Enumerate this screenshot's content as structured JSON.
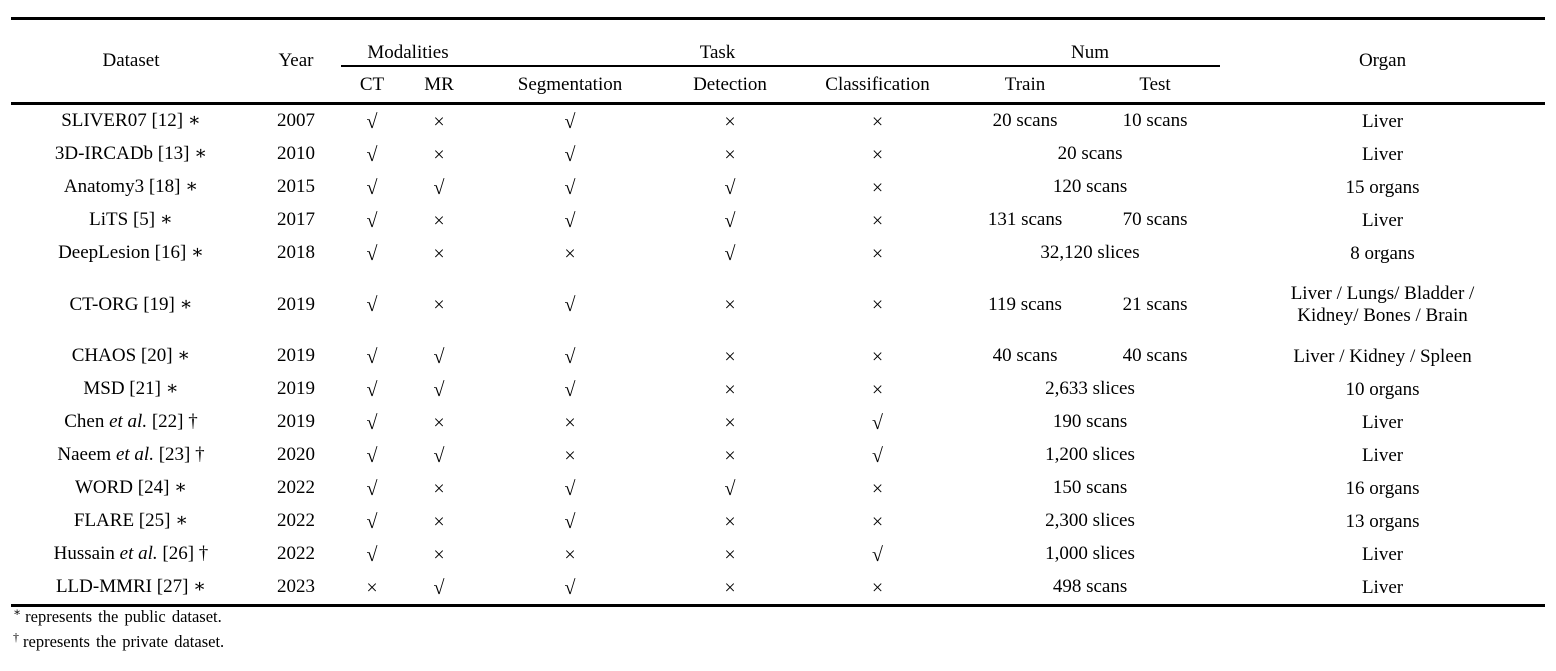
{
  "table": {
    "header": {
      "dataset": "Dataset",
      "year": "Year",
      "modalities": "Modalities",
      "task": "Task",
      "num": "Num",
      "organ": "Organ",
      "ct": "CT",
      "mr": "MR",
      "segmentation": "Segmentation",
      "detection": "Detection",
      "classification": "Classification",
      "train": "Train",
      "test": "Test"
    },
    "symbols": {
      "yes": "√",
      "no": "×",
      "public_marker": "∗",
      "private_marker": "†"
    },
    "rows": [
      {
        "name_pre": "SLIVER07 [12] ∗",
        "name_it": "",
        "name_post": "",
        "year": "2007",
        "ct": "√",
        "mr": "×",
        "segmentation": "√",
        "detection": "×",
        "classification": "×",
        "train": "20 scans",
        "test": "10 scans",
        "organ": "Liver",
        "organ2": ""
      },
      {
        "name_pre": "3D-IRCADb [13] ∗",
        "name_it": "",
        "name_post": "",
        "year": "2010",
        "ct": "√",
        "mr": "×",
        "segmentation": "√",
        "detection": "×",
        "classification": "×",
        "train": "20 scans",
        "test": "",
        "organ": "Liver",
        "organ2": ""
      },
      {
        "name_pre": "Anatomy3 [18] ∗",
        "name_it": "",
        "name_post": "",
        "year": "2015",
        "ct": "√",
        "mr": "√",
        "segmentation": "√",
        "detection": "√",
        "classification": "×",
        "train": "120 scans",
        "test": "",
        "organ": "15 organs",
        "organ2": ""
      },
      {
        "name_pre": "LiTS [5] ∗",
        "name_it": "",
        "name_post": "",
        "year": "2017",
        "ct": "√",
        "mr": "×",
        "segmentation": "√",
        "detection": "√",
        "classification": "×",
        "train": "131 scans",
        "test": "70 scans",
        "organ": "Liver",
        "organ2": ""
      },
      {
        "name_pre": "DeepLesion [16] ∗",
        "name_it": "",
        "name_post": "",
        "year": "2018",
        "ct": "√",
        "mr": "×",
        "segmentation": "×",
        "detection": "√",
        "classification": "×",
        "train": "32,120 slices",
        "test": "",
        "organ": "8 organs",
        "organ2": ""
      },
      {
        "name_pre": "CT-ORG [19] ∗",
        "name_it": "",
        "name_post": "",
        "year": "2019",
        "ct": "√",
        "mr": "×",
        "segmentation": "√",
        "detection": "×",
        "classification": "×",
        "train": "119 scans",
        "test": "21 scans",
        "organ": "Liver / Lungs/ Bladder /",
        "organ2": "Kidney/ Bones / Brain"
      },
      {
        "name_pre": "CHAOS [20] ∗",
        "name_it": "",
        "name_post": "",
        "year": "2019",
        "ct": "√",
        "mr": "√",
        "segmentation": "√",
        "detection": "×",
        "classification": "×",
        "train": "40 scans",
        "test": "40 scans",
        "organ": "Liver / Kidney / Spleen",
        "organ2": ""
      },
      {
        "name_pre": "MSD [21] ∗",
        "name_it": "",
        "name_post": "",
        "year": "2019",
        "ct": "√",
        "mr": "√",
        "segmentation": "√",
        "detection": "×",
        "classification": "×",
        "train": "2,633 slices",
        "test": "",
        "organ": "10 organs",
        "organ2": ""
      },
      {
        "name_pre": "Chen ",
        "name_it": "et al.",
        "name_post": " [22] †",
        "year": "2019",
        "ct": "√",
        "mr": "×",
        "segmentation": "×",
        "detection": "×",
        "classification": "√",
        "train": "190 scans",
        "test": "",
        "organ": "Liver",
        "organ2": ""
      },
      {
        "name_pre": "Naeem ",
        "name_it": "et al.",
        "name_post": " [23] †",
        "year": "2020",
        "ct": "√",
        "mr": "√",
        "segmentation": "×",
        "detection": "×",
        "classification": "√",
        "train": "1,200 slices",
        "test": "",
        "organ": "Liver",
        "organ2": ""
      },
      {
        "name_pre": "WORD [24] ∗",
        "name_it": "",
        "name_post": "",
        "year": "2022",
        "ct": "√",
        "mr": "×",
        "segmentation": "√",
        "detection": "√",
        "classification": "×",
        "train": "150 scans",
        "test": "",
        "organ": "16 organs",
        "organ2": ""
      },
      {
        "name_pre": "FLARE [25] ∗",
        "name_it": "",
        "name_post": "",
        "year": "2022",
        "ct": "√",
        "mr": "×",
        "segmentation": "√",
        "detection": "×",
        "classification": "×",
        "train": "2,300 slices",
        "test": "",
        "organ": "13 organs",
        "organ2": ""
      },
      {
        "name_pre": "Hussain ",
        "name_it": "et al.",
        "name_post": " [26] †",
        "year": "2022",
        "ct": "√",
        "mr": "×",
        "segmentation": "×",
        "detection": "×",
        "classification": "√",
        "train": "1,000 slices",
        "test": "",
        "organ": "Liver",
        "organ2": ""
      },
      {
        "name_pre": "LLD-MMRI [27] ∗",
        "name_it": "",
        "name_post": "",
        "year": "2023",
        "ct": "×",
        "mr": "√",
        "segmentation": "√",
        "detection": "×",
        "classification": "×",
        "train": "498 scans",
        "test": "",
        "organ": "Liver",
        "organ2": ""
      }
    ],
    "footnotes": [
      {
        "marker": "∗",
        "text": "represents the public dataset."
      },
      {
        "marker": "†",
        "text": "represents the private dataset."
      }
    ]
  }
}
